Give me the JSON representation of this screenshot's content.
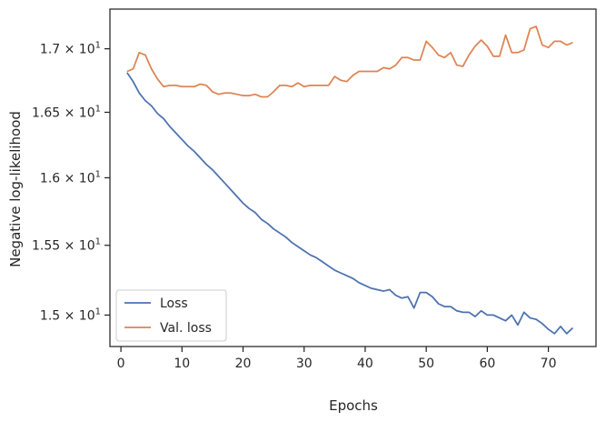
{
  "chart_data": {
    "type": "line",
    "xlabel": "Epochs",
    "ylabel": "Negative log-likelihood",
    "xlim": [
      -1.8,
      77.8
    ],
    "ylim": [
      14.78,
      17.32
    ],
    "yscale": "log",
    "xticks": [
      0,
      10,
      20,
      30,
      40,
      50,
      60,
      70
    ],
    "xtick_labels": [
      "0",
      "10",
      "20",
      "30",
      "40",
      "50",
      "60",
      "70"
    ],
    "yticks": [
      15.0,
      15.5,
      16.0,
      16.5,
      17.0
    ],
    "ytick_labels": [
      {
        "mantissa": "1.5",
        "base": "10",
        "exp": "1"
      },
      {
        "mantissa": "1.55",
        "base": "10",
        "exp": "1"
      },
      {
        "mantissa": "1.6",
        "base": "10",
        "exp": "1"
      },
      {
        "mantissa": "1.65",
        "base": "10",
        "exp": "1"
      },
      {
        "mantissa": "1.7",
        "base": "10",
        "exp": "1"
      }
    ],
    "grid": false,
    "legend_position": "lower-left",
    "x": [
      1,
      2,
      3,
      4,
      5,
      6,
      7,
      8,
      9,
      10,
      11,
      12,
      13,
      14,
      15,
      16,
      17,
      18,
      19,
      20,
      21,
      22,
      23,
      24,
      25,
      26,
      27,
      28,
      29,
      30,
      31,
      32,
      33,
      34,
      35,
      36,
      37,
      38,
      39,
      40,
      41,
      42,
      43,
      44,
      45,
      46,
      47,
      48,
      49,
      50,
      51,
      52,
      53,
      54,
      55,
      56,
      57,
      58,
      59,
      60,
      61,
      62,
      63,
      64,
      65,
      66,
      67,
      68,
      69,
      70,
      71,
      72,
      73,
      74
    ],
    "series": [
      {
        "name": "Loss",
        "color": "#4c72b0",
        "values": [
          16.81,
          16.74,
          16.65,
          16.59,
          16.55,
          16.49,
          16.45,
          16.39,
          16.34,
          16.29,
          16.24,
          16.2,
          16.15,
          16.1,
          16.06,
          16.01,
          15.96,
          15.91,
          15.86,
          15.81,
          15.77,
          15.74,
          15.69,
          15.66,
          15.62,
          15.59,
          15.56,
          15.52,
          15.49,
          15.46,
          15.43,
          15.41,
          15.38,
          15.35,
          15.32,
          15.3,
          15.28,
          15.26,
          15.23,
          15.21,
          15.19,
          15.18,
          15.17,
          15.18,
          15.14,
          15.12,
          15.13,
          15.05,
          15.16,
          15.16,
          15.13,
          15.08,
          15.06,
          15.06,
          15.03,
          15.02,
          15.02,
          14.99,
          15.03,
          15.0,
          15.0,
          14.98,
          14.96,
          15.0,
          14.93,
          15.02,
          14.98,
          14.97,
          14.94,
          14.9,
          14.87,
          14.92,
          14.87,
          14.91
        ]
      },
      {
        "name": "Val. loss",
        "color": "#dd8452",
        "values": [
          16.82,
          16.84,
          16.97,
          16.95,
          16.84,
          16.76,
          16.7,
          16.71,
          16.71,
          16.7,
          16.7,
          16.7,
          16.72,
          16.71,
          16.66,
          16.64,
          16.65,
          16.65,
          16.64,
          16.63,
          16.63,
          16.64,
          16.62,
          16.62,
          16.66,
          16.71,
          16.71,
          16.7,
          16.73,
          16.7,
          16.71,
          16.71,
          16.71,
          16.71,
          16.78,
          16.75,
          16.74,
          16.79,
          16.82,
          16.82,
          16.82,
          16.82,
          16.85,
          16.84,
          16.87,
          16.93,
          16.93,
          16.91,
          16.91,
          17.06,
          17.01,
          16.95,
          16.93,
          16.97,
          16.87,
          16.86,
          16.95,
          17.02,
          17.07,
          17.02,
          16.94,
          16.94,
          17.11,
          16.97,
          16.97,
          16.99,
          17.16,
          17.18,
          17.03,
          17.01,
          17.06,
          17.06,
          17.03,
          17.05
        ]
      }
    ]
  }
}
